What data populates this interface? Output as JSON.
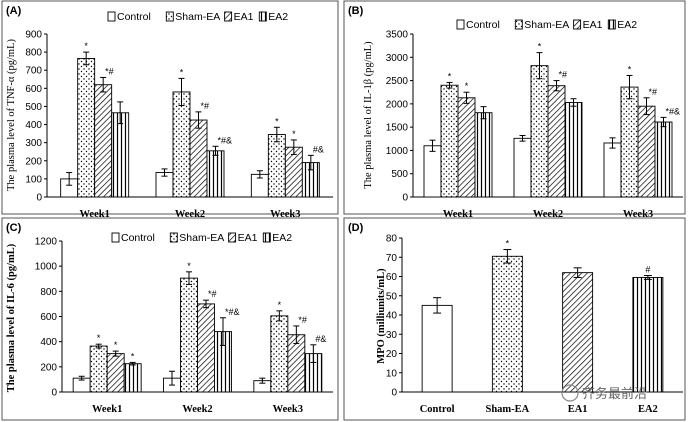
{
  "watermark": "齐务最前沿",
  "colors": {
    "axis": "#000000",
    "fill": "#ffffff",
    "pattern": "#000000"
  },
  "chart_data": [
    {
      "panel": "(A)",
      "type": "bar",
      "ylabel": "The plasma level of TNF-α (pg/mL)",
      "ylim": [
        0,
        900
      ],
      "yticks": [
        0,
        100,
        200,
        300,
        400,
        500,
        600,
        700,
        800,
        900
      ],
      "categories": [
        "Week1",
        "Week2",
        "Week3"
      ],
      "legend": [
        "Control",
        "Sham-EA",
        "EA1",
        "EA2"
      ],
      "series": [
        {
          "name": "Control",
          "pattern": "blank",
          "values": [
            100,
            135,
            125
          ],
          "errors": [
            35,
            20,
            20
          ],
          "annotations": [
            "",
            "",
            ""
          ]
        },
        {
          "name": "Sham-EA",
          "pattern": "dots",
          "values": [
            765,
            580,
            345
          ],
          "errors": [
            35,
            75,
            40
          ],
          "annotations": [
            "*",
            "*",
            "*"
          ]
        },
        {
          "name": "EA1",
          "pattern": "diagonal",
          "values": [
            620,
            425,
            275
          ],
          "errors": [
            40,
            45,
            40
          ],
          "annotations": [
            "*#",
            "*#",
            "*"
          ]
        },
        {
          "name": "EA2",
          "pattern": "vertical",
          "values": [
            465,
            255,
            190
          ],
          "errors": [
            60,
            25,
            40
          ],
          "annotations": [
            "",
            "*#&",
            "#&"
          ]
        }
      ]
    },
    {
      "panel": "(B)",
      "type": "bar",
      "ylabel": "The plasma level of IL-1β (pg/mL)",
      "ylim": [
        0,
        3500
      ],
      "yticks": [
        0,
        500,
        1000,
        1500,
        2000,
        2500,
        3000,
        3500
      ],
      "categories": [
        "Week1",
        "Week2",
        "Week3"
      ],
      "legend": [
        "Control",
        "Sham-EA",
        "EA1",
        "EA2"
      ],
      "series": [
        {
          "name": "Control",
          "pattern": "blank",
          "values": [
            1100,
            1260,
            1160
          ],
          "errors": [
            120,
            60,
            110
          ],
          "annotations": [
            "",
            "",
            ""
          ]
        },
        {
          "name": "Sham-EA",
          "pattern": "dots",
          "values": [
            2400,
            2820,
            2360
          ],
          "errors": [
            60,
            280,
            250
          ],
          "annotations": [
            "*",
            "*",
            "*"
          ]
        },
        {
          "name": "EA1",
          "pattern": "diagonal",
          "values": [
            2130,
            2390,
            1950
          ],
          "errors": [
            120,
            110,
            180
          ],
          "annotations": [
            "*",
            "*#",
            "*#"
          ]
        },
        {
          "name": "EA2",
          "pattern": "vertical",
          "values": [
            1810,
            2030,
            1610
          ],
          "errors": [
            130,
            80,
            100
          ],
          "annotations": [
            "",
            "",
            "*#&"
          ]
        }
      ]
    },
    {
      "panel": "(C)",
      "type": "bar",
      "ylabel": "The plasma level of IL-6 (pg/mL)",
      "ylim": [
        0,
        1200
      ],
      "yticks": [
        0,
        200,
        400,
        600,
        800,
        1000,
        1200
      ],
      "categories": [
        "Week1",
        "Week2",
        "Week3"
      ],
      "legend": [
        "Control",
        "Sham-EA",
        "EA1",
        "EA2"
      ],
      "series": [
        {
          "name": "Control",
          "pattern": "blank",
          "values": [
            110,
            110,
            90
          ],
          "errors": [
            15,
            55,
            20
          ],
          "annotations": [
            "",
            "",
            ""
          ]
        },
        {
          "name": "Sham-EA",
          "pattern": "dots",
          "values": [
            365,
            905,
            605
          ],
          "errors": [
            15,
            50,
            40
          ],
          "annotations": [
            "*",
            "*",
            "*"
          ]
        },
        {
          "name": "EA1",
          "pattern": "diagonal",
          "values": [
            305,
            700,
            455
          ],
          "errors": [
            20,
            30,
            70
          ],
          "annotations": [
            "*",
            "*#",
            "*#"
          ]
        },
        {
          "name": "EA2",
          "pattern": "vertical",
          "values": [
            225,
            480,
            305
          ],
          "errors": [
            10,
            110,
            70
          ],
          "annotations": [
            "*",
            "*#&",
            "#&"
          ]
        }
      ]
    },
    {
      "panel": "(D)",
      "type": "bar",
      "ylabel": "MPO (milliunits/mL)",
      "ylim": [
        0,
        80
      ],
      "yticks": [
        0,
        10,
        20,
        30,
        40,
        50,
        60,
        70,
        80
      ],
      "categories": [
        "Control",
        "Sham-EA",
        "EA1",
        "EA2"
      ],
      "legend": [],
      "series": [
        {
          "name": "",
          "patterns": [
            "blank",
            "dots",
            "diagonal",
            "vertical"
          ],
          "values": [
            45,
            70.5,
            62,
            59.5
          ],
          "errors": [
            4,
            3.5,
            2.5,
            1
          ],
          "annotations": [
            "",
            "*",
            "",
            "#"
          ]
        }
      ]
    }
  ]
}
